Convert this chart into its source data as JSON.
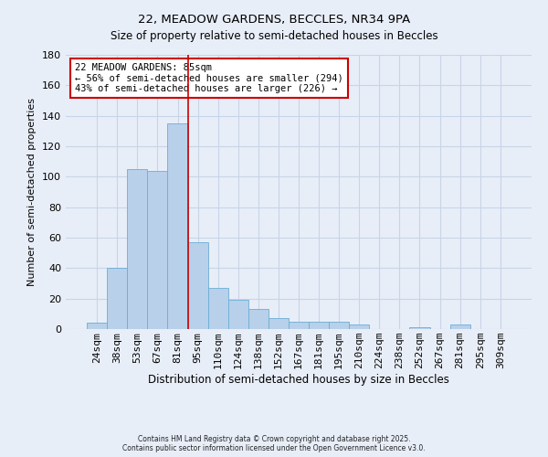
{
  "title": "22, MEADOW GARDENS, BECCLES, NR34 9PA",
  "subtitle": "Size of property relative to semi-detached houses in Beccles",
  "xlabel": "Distribution of semi-detached houses by size in Beccles",
  "ylabel": "Number of semi-detached properties",
  "bar_labels": [
    "24sqm",
    "38sqm",
    "53sqm",
    "67sqm",
    "81sqm",
    "95sqm",
    "110sqm",
    "124sqm",
    "138sqm",
    "152sqm",
    "167sqm",
    "181sqm",
    "195sqm",
    "210sqm",
    "224sqm",
    "238sqm",
    "252sqm",
    "267sqm",
    "281sqm",
    "295sqm",
    "309sqm"
  ],
  "bar_values": [
    4,
    40,
    105,
    104,
    135,
    57,
    27,
    19,
    13,
    7,
    5,
    5,
    5,
    3,
    0,
    0,
    1,
    0,
    3,
    0,
    0
  ],
  "bar_color": "#b8d0ea",
  "bar_edge_color": "#6aaed6",
  "vline_x": 4.5,
  "vline_color": "#cc0000",
  "ylim": [
    0,
    180
  ],
  "yticks": [
    0,
    20,
    40,
    60,
    80,
    100,
    120,
    140,
    160,
    180
  ],
  "annotation_title": "22 MEADOW GARDENS: 85sqm",
  "annotation_line1": "← 56% of semi-detached houses are smaller (294)",
  "annotation_line2": "43% of semi-detached houses are larger (226) →",
  "annotation_box_color": "#ffffff",
  "annotation_box_edge": "#cc0000",
  "bg_color": "#e8eef8",
  "grid_color": "#c8d4e8",
  "footer1": "Contains HM Land Registry data © Crown copyright and database right 2025.",
  "footer2": "Contains public sector information licensed under the Open Government Licence v3.0."
}
